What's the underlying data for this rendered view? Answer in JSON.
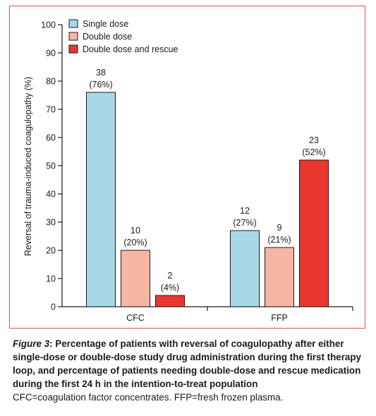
{
  "chart_data": {
    "type": "bar",
    "ylabel": "Reversal of trauma-induced coagulopathy (%)",
    "xlabel": "",
    "ylim": [
      0,
      100
    ],
    "yticks": [
      0,
      10,
      20,
      30,
      40,
      50,
      60,
      70,
      80,
      90,
      100
    ],
    "categories": [
      "CFC",
      "FFP"
    ],
    "legend_position": "top-left",
    "series": [
      {
        "name": "Single dose",
        "color": "#a8d8e8",
        "values": [
          76,
          27
        ],
        "counts": [
          "38",
          "12"
        ],
        "pct_labels": [
          "(76%)",
          "(27%)"
        ]
      },
      {
        "name": "Double dose",
        "color": "#f5b7a2",
        "values": [
          20,
          21
        ],
        "counts": [
          "10",
          "9"
        ],
        "pct_labels": [
          "(20%)",
          "(21%)"
        ]
      },
      {
        "name": "Double dose and rescue",
        "color": "#e8372e",
        "values": [
          4,
          52
        ],
        "counts": [
          "2",
          "23"
        ],
        "pct_labels": [
          "(4%)",
          "(52%)"
        ]
      }
    ]
  },
  "caption": {
    "figure_label": "Figure 3",
    "title": ": Percentage of patients with reversal of coagulopathy after either single-dose or double-dose study drug administration during the first therapy loop, and percentage of patients needing double-dose and rescue medication during the first 24 h in the intention-to-treat population",
    "note": "CFC=coagulation factor concentrates. FFP=fresh frozen plasma."
  }
}
